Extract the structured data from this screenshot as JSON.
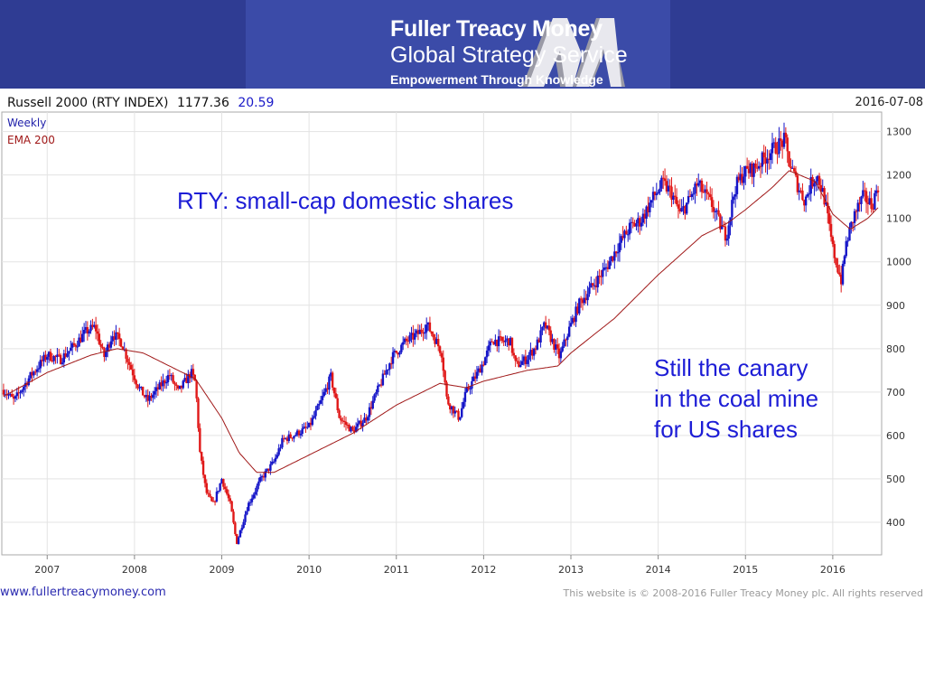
{
  "header": {
    "brand_title": "Fuller Treacy Money",
    "brand_subtitle": "Global Strategy Service",
    "tagline": "Empowerment Through Knowledge",
    "colors": {
      "banner": "#2f3c93",
      "banner_center": "#3b4ba8",
      "logo_light": "#e8e8ee",
      "logo_shadow": "#9a9aa6"
    }
  },
  "chart_data": {
    "type": "candlestick",
    "title_name": "Russell 2000 (RTY INDEX)",
    "last_price": "1177.36",
    "change": "20.59",
    "date": "2016-07-08",
    "legend": [
      "Weekly",
      "EMA 200"
    ],
    "legend_position": "top-left",
    "y_axis": {
      "ticks": [
        400,
        500,
        600,
        700,
        800,
        900,
        1000,
        1100,
        1200,
        1300
      ],
      "ylim": [
        325,
        1345
      ],
      "side": "right"
    },
    "x_axis": {
      "ticks": [
        "2007",
        "2008",
        "2009",
        "2010",
        "2011",
        "2012",
        "2013",
        "2014",
        "2015",
        "2016"
      ],
      "xlim": [
        2006.48,
        2016.56
      ]
    },
    "grid": true,
    "colors": {
      "up": "#1515c8",
      "down": "#e01818",
      "ema": "#a01818",
      "change": "#1a1ac8",
      "grid": "#e3e3e3"
    },
    "price_anchors": [
      [
        2006.5,
        705
      ],
      [
        2006.62,
        680
      ],
      [
        2006.8,
        735
      ],
      [
        2007.0,
        785
      ],
      [
        2007.15,
        775
      ],
      [
        2007.3,
        805
      ],
      [
        2007.45,
        840
      ],
      [
        2007.55,
        850
      ],
      [
        2007.65,
        780
      ],
      [
        2007.75,
        835
      ],
      [
        2007.85,
        815
      ],
      [
        2007.95,
        760
      ],
      [
        2008.05,
        710
      ],
      [
        2008.15,
        680
      ],
      [
        2008.28,
        710
      ],
      [
        2008.4,
        740
      ],
      [
        2008.5,
        700
      ],
      [
        2008.6,
        730
      ],
      [
        2008.65,
        745
      ],
      [
        2008.7,
        720
      ],
      [
        2008.75,
        560
      ],
      [
        2008.82,
        470
      ],
      [
        2008.9,
        440
      ],
      [
        2009.0,
        500
      ],
      [
        2009.1,
        440
      ],
      [
        2009.17,
        352
      ],
      [
        2009.3,
        440
      ],
      [
        2009.45,
        500
      ],
      [
        2009.6,
        540
      ],
      [
        2009.7,
        590
      ],
      [
        2009.82,
        600
      ],
      [
        2010.0,
        620
      ],
      [
        2010.12,
        670
      ],
      [
        2010.25,
        735
      ],
      [
        2010.35,
        640
      ],
      [
        2010.5,
        610
      ],
      [
        2010.65,
        640
      ],
      [
        2010.8,
        710
      ],
      [
        2010.95,
        780
      ],
      [
        2011.1,
        815
      ],
      [
        2011.25,
        835
      ],
      [
        2011.35,
        855
      ],
      [
        2011.45,
        820
      ],
      [
        2011.52,
        790
      ],
      [
        2011.58,
        680
      ],
      [
        2011.65,
        660
      ],
      [
        2011.72,
        640
      ],
      [
        2011.8,
        700
      ],
      [
        2011.92,
        740
      ],
      [
        2012.0,
        770
      ],
      [
        2012.1,
        820
      ],
      [
        2012.22,
        815
      ],
      [
        2012.3,
        820
      ],
      [
        2012.37,
        760
      ],
      [
        2012.48,
        775
      ],
      [
        2012.6,
        805
      ],
      [
        2012.7,
        855
      ],
      [
        2012.78,
        820
      ],
      [
        2012.87,
        780
      ],
      [
        2012.97,
        840
      ],
      [
        2013.1,
        905
      ],
      [
        2013.25,
        945
      ],
      [
        2013.4,
        985
      ],
      [
        2013.55,
        1040
      ],
      [
        2013.68,
        1080
      ],
      [
        2013.8,
        1095
      ],
      [
        2013.95,
        1150
      ],
      [
        2014.05,
        1180
      ],
      [
        2014.15,
        1160
      ],
      [
        2014.25,
        1110
      ],
      [
        2014.35,
        1140
      ],
      [
        2014.45,
        1180
      ],
      [
        2014.55,
        1150
      ],
      [
        2014.62,
        1130
      ],
      [
        2014.72,
        1080
      ],
      [
        2014.78,
        1060
      ],
      [
        2014.88,
        1170
      ],
      [
        2014.98,
        1205
      ],
      [
        2015.1,
        1215
      ],
      [
        2015.22,
        1240
      ],
      [
        2015.35,
        1265
      ],
      [
        2015.45,
        1280
      ],
      [
        2015.5,
        1230
      ],
      [
        2015.6,
        1175
      ],
      [
        2015.68,
        1140
      ],
      [
        2015.75,
        1180
      ],
      [
        2015.82,
        1200
      ],
      [
        2015.9,
        1150
      ],
      [
        2016.0,
        1030
      ],
      [
        2016.05,
        990
      ],
      [
        2016.1,
        955
      ],
      [
        2016.15,
        1040
      ],
      [
        2016.25,
        1110
      ],
      [
        2016.35,
        1150
      ],
      [
        2016.45,
        1130
      ],
      [
        2016.52,
        1177
      ]
    ],
    "ema_anchors": [
      [
        2006.5,
        690
      ],
      [
        2007.0,
        745
      ],
      [
        2007.5,
        785
      ],
      [
        2007.8,
        800
      ],
      [
        2008.1,
        790
      ],
      [
        2008.4,
        760
      ],
      [
        2008.7,
        730
      ],
      [
        2009.0,
        640
      ],
      [
        2009.2,
        560
      ],
      [
        2009.4,
        515
      ],
      [
        2009.6,
        515
      ],
      [
        2010.0,
        555
      ],
      [
        2010.5,
        605
      ],
      [
        2011.0,
        670
      ],
      [
        2011.5,
        720
      ],
      [
        2011.8,
        710
      ],
      [
        2012.0,
        725
      ],
      [
        2012.5,
        750
      ],
      [
        2012.85,
        760
      ],
      [
        2013.0,
        790
      ],
      [
        2013.5,
        870
      ],
      [
        2014.0,
        970
      ],
      [
        2014.5,
        1060
      ],
      [
        2014.8,
        1090
      ],
      [
        2015.0,
        1120
      ],
      [
        2015.3,
        1170
      ],
      [
        2015.5,
        1210
      ],
      [
        2015.8,
        1185
      ],
      [
        2016.0,
        1110
      ],
      [
        2016.2,
        1075
      ],
      [
        2016.4,
        1100
      ],
      [
        2016.52,
        1125
      ]
    ]
  },
  "annotations": {
    "note_1": "RTY: small-cap domestic shares",
    "note_2_lines": [
      "Still the canary",
      "in the coal mine",
      "for US shares"
    ]
  },
  "footer": {
    "site": "www.fullertreacymoney.com",
    "copyright": "This website is © 2008-2016 Fuller Treacy Money plc. All rights reserved"
  }
}
